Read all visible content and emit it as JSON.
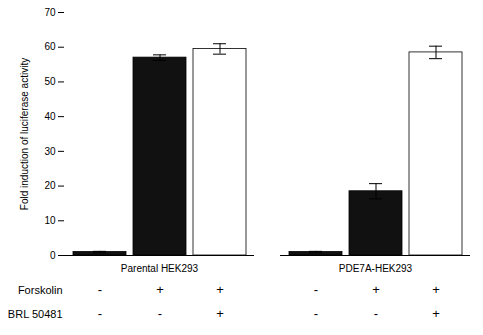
{
  "chart_data": {
    "type": "bar",
    "ylabel": "Fold induction of luciferase activity",
    "categories": [
      "Parental HEK293",
      "PDE7A-HEK293"
    ],
    "values": [
      [
        1.0,
        57.0,
        59.5
      ],
      [
        1.0,
        18.5,
        58.5
      ]
    ],
    "errors": [
      [
        0.2,
        0.8,
        1.5
      ],
      [
        0.2,
        2.2,
        1.8
      ]
    ],
    "colors": [
      [
        "#111111",
        "#111111",
        "#ffffff"
      ],
      [
        "#111111",
        "#111111",
        "#ffffff"
      ]
    ],
    "ylim": [
      0,
      70
    ],
    "yticks": [
      0,
      10,
      20,
      30,
      40,
      50,
      60,
      70
    ],
    "annotations": [
      {
        "label": "Forskolin",
        "signs": [
          [
            "-",
            "+",
            "+"
          ],
          [
            "-",
            "+",
            "+"
          ]
        ]
      },
      {
        "label": "BRL 50481",
        "signs": [
          [
            "-",
            "-",
            "+"
          ],
          [
            "-",
            "-",
            "+"
          ]
        ]
      }
    ]
  }
}
